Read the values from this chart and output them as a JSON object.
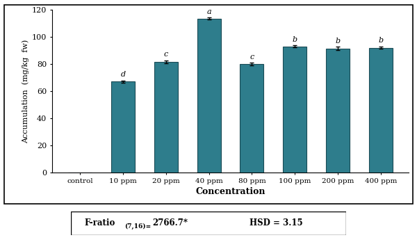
{
  "categories": [
    "control",
    "10 ppm",
    "20 ppm",
    "40 ppm",
    "80 ppm",
    "100 ppm",
    "200 ppm",
    "400 ppm"
  ],
  "values": [
    0,
    67.0,
    81.5,
    113.5,
    80.0,
    93.0,
    91.5,
    92.0
  ],
  "errors": [
    0,
    0.8,
    1.2,
    0.7,
    0.8,
    0.7,
    1.2,
    0.8
  ],
  "bar_color": "#2E7D8C",
  "bar_edgecolor": "#1a4a55",
  "letters": [
    "",
    "d",
    "c",
    "a",
    "c",
    "b",
    "b",
    "b"
  ],
  "ylabel": "Accumulation  (mg/kg  fw)",
  "xlabel": "Concentration",
  "ylim": [
    0,
    120
  ],
  "yticks": [
    0,
    20,
    40,
    60,
    80,
    100,
    120
  ],
  "background_color": "#ffffff"
}
